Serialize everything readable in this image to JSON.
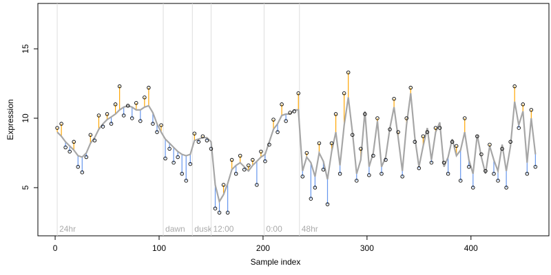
{
  "chart_data": {
    "type": "residual-scatter",
    "x_label": "Sample index",
    "y_label": "Expression",
    "xlim": [
      -16.6,
      475
    ],
    "ylim": [
      1.53,
      18.27
    ],
    "xticks": [
      0,
      100,
      200,
      300,
      400
    ],
    "yticks": [
      5,
      10,
      15
    ],
    "grid": false,
    "point_color": "#000000",
    "fit_color": "#a6a6a6",
    "above_color": "#ffa500",
    "below_color": "#6495ed",
    "markers": [
      {
        "x": 2,
        "label": "24hr"
      },
      {
        "x": 104,
        "label": "dawn"
      },
      {
        "x": 132,
        "label": "dusk"
      },
      {
        "x": 150,
        "label": "12:00"
      },
      {
        "x": 201,
        "label": "0:00"
      },
      {
        "x": 235,
        "label": "48hr"
      }
    ],
    "x": [
      2,
      6,
      10,
      14,
      18,
      22,
      26,
      30,
      34,
      38,
      42,
      46,
      50,
      54,
      58,
      62,
      66,
      70,
      74,
      78,
      82,
      86,
      90,
      94,
      98,
      102,
      106,
      110,
      114,
      118,
      122,
      126,
      130,
      134,
      138,
      142,
      146,
      150,
      154,
      158,
      162,
      166,
      170,
      174,
      178,
      182,
      186,
      190,
      194,
      198,
      202,
      206,
      210,
      214,
      218,
      222,
      226,
      230,
      234,
      238,
      242,
      246,
      250,
      254,
      258,
      262,
      266,
      270,
      274,
      278,
      282,
      286,
      290,
      294,
      298,
      302,
      306,
      310,
      314,
      318,
      322,
      326,
      330,
      334,
      338,
      342,
      346,
      350,
      354,
      358,
      362,
      366,
      370,
      374,
      378,
      382,
      386,
      390,
      394,
      398,
      402,
      406,
      410,
      414,
      418,
      422,
      426,
      430,
      434,
      438,
      442,
      446,
      450,
      454,
      458,
      462
    ],
    "observed": [
      9.3,
      9.6,
      7.9,
      7.6,
      8.3,
      6.5,
      6.1,
      7.2,
      8.8,
      8.4,
      10.2,
      9.4,
      10.3,
      9.6,
      11.0,
      12.3,
      10.2,
      10.9,
      10.0,
      11.1,
      9.8,
      11.5,
      12.2,
      9.6,
      9.0,
      9.5,
      7.1,
      7.8,
      6.8,
      7.2,
      6.0,
      5.5,
      6.7,
      8.9,
      8.3,
      8.7,
      8.4,
      7.8,
      3.5,
      3.2,
      5.2,
      3.2,
      7.0,
      6.0,
      7.3,
      6.3,
      6.6,
      7.0,
      5.2,
      7.6,
      6.9,
      8.1,
      9.9,
      9.0,
      11.0,
      9.8,
      10.4,
      10.5,
      11.8,
      5.8,
      7.5,
      4.2,
      5.0,
      8.2,
      6.3,
      3.8,
      8.2,
      10.3,
      6.0,
      11.8,
      13.3,
      8.8,
      5.5,
      7.8,
      10.3,
      5.9,
      7.3,
      10.0,
      6.0,
      7.0,
      9.2,
      11.4,
      9.0,
      5.8,
      10.0,
      12.2,
      8.3,
      6.4,
      8.7,
      9.0,
      6.8,
      9.3,
      9.3,
      6.8,
      6.0,
      8.3,
      8.0,
      5.5,
      10.0,
      6.5,
      5.0,
      8.7,
      7.4,
      6.2,
      8.1,
      6.0,
      5.5,
      7.8,
      5.0,
      8.3,
      12.3,
      9.3,
      11.0,
      6.0,
      10.6,
      6.5
    ],
    "fitted": [
      9.0,
      8.7,
      8.3,
      8.0,
      7.7,
      7.3,
      7.2,
      7.5,
      8.2,
      8.6,
      9.2,
      9.6,
      9.9,
      10.1,
      10.3,
      10.6,
      10.8,
      10.9,
      10.8,
      10.6,
      10.6,
      10.8,
      10.9,
      10.4,
      9.6,
      9.0,
      8.5,
      8.2,
      7.9,
      7.6,
      7.4,
      7.3,
      7.4,
      8.4,
      8.5,
      8.6,
      8.6,
      8.3,
      5.2,
      4.0,
      4.5,
      5.3,
      6.3,
      6.6,
      6.8,
      6.5,
      6.2,
      6.6,
      6.9,
      7.2,
      7.4,
      8.3,
      9.2,
      9.6,
      10.2,
      10.3,
      10.3,
      10.6,
      10.6,
      6.2,
      7.2,
      6.8,
      5.8,
      7.5,
      6.9,
      5.6,
      7.6,
      9.0,
      6.6,
      9.5,
      11.5,
      9.0,
      6.0,
      7.0,
      10.5,
      6.5,
      7.5,
      9.8,
      6.5,
      7.2,
      9.3,
      10.8,
      8.6,
      6.2,
      9.5,
      11.8,
      8.6,
      6.5,
      8.0,
      9.3,
      7.0,
      9.0,
      9.7,
      6.5,
      7.2,
      8.5,
      7.3,
      7.7,
      9.0,
      7.0,
      6.0,
      8.8,
      7.2,
      6.0,
      8.0,
      7.0,
      6.2,
      8.1,
      6.2,
      8.0,
      11.2,
      9.5,
      10.5,
      6.8,
      10.0,
      7.4
    ]
  }
}
